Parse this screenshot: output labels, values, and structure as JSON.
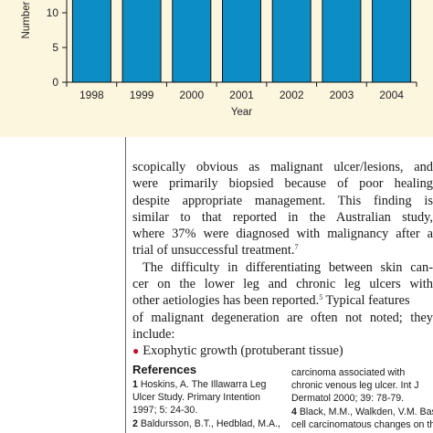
{
  "chart_data": {
    "type": "bar",
    "categories": [
      "1998",
      "1999",
      "2000",
      "2001",
      "2002",
      "2003",
      "2004"
    ],
    "y_ticks": [
      "0",
      "5",
      "10"
    ],
    "xlabel": "Year",
    "ylabel": "Number",
    "ylim": [
      0,
      14.5
    ],
    "series": [
      {
        "values": [
          14.5,
          13,
          14.5,
          14.5,
          14.5,
          14.5,
          14.5
        ],
        "color": "#0c8dc4"
      },
      {
        "values": [
          0,
          1.5,
          0,
          0,
          0,
          0,
          0
        ],
        "color": "#d21f3c"
      }
    ],
    "grid": false,
    "panel_color": "#fdf6df"
  },
  "body_text": {
    "lines": [
      "scopically obvious as malignant ulcer/lesions, and",
      "were primarily biopsied because of poor healing",
      "despite appropriate management. This finding is",
      "similar to that reported in the Australian study,",
      "where 37% were diagnosed with malignancy after a",
      "trial of unsuccessful treatment."
    ],
    "ref_mark_1": "7",
    "para2_lines": [
      "The difficulty in differentiating between skin can-",
      "cer on the lower leg  and chronic leg ulcers with",
      "other aetiologies has been reported."
    ],
    "ref_mark_2": "5",
    "para2_tail": " Typical features",
    "para2_more": [
      "of malignant degeneration are often not noted; they",
      "include:"
    ],
    "bullet": "Exophytic growth (protuberant tissue)"
  },
  "references": {
    "heading": "References",
    "left": [
      {
        "num": "1",
        "lines": [
          "Hoskins, A. The Illawarra Leg",
          "Ulcer Study. Primary Intention",
          "1997; 5: 24-30."
        ]
      },
      {
        "num": "2",
        "lines": [
          "Baldursson, B.T., Hedblad, M.A.,"
        ]
      }
    ],
    "right_lines": [
      "carcinoma associated with",
      "chronic venous leg ulcer. Int J",
      "Dermatol 2000; 39: 78-79."
    ],
    "right_next": {
      "num": "4",
      "lines": [
        "Black, M.M., Walkden, V.M. Basal",
        "cell carcinomatous changes on the"
      ]
    }
  }
}
